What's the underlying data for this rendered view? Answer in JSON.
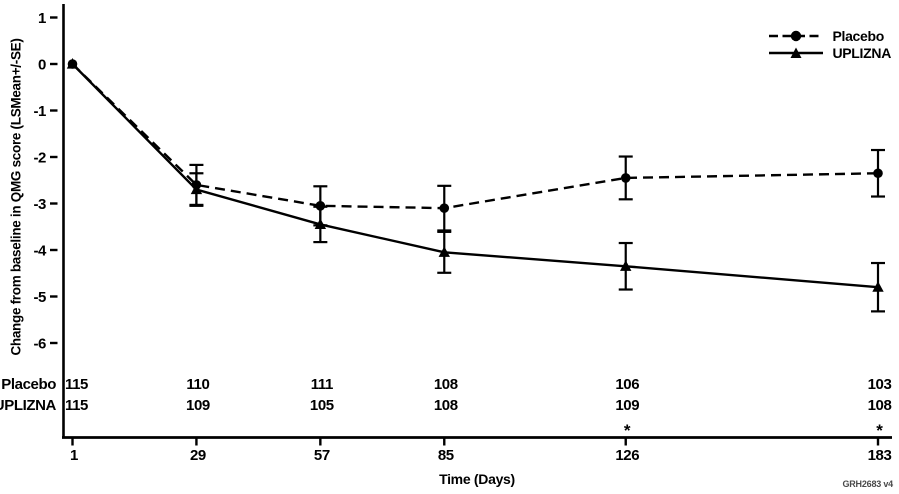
{
  "chart_data": {
    "type": "line",
    "title": "",
    "x_axis_title": "Time (Days)",
    "y_axis_title": "Change from baseline in QMG score (LSMean+/-SE)",
    "days": [
      1,
      29,
      57,
      85,
      126,
      183
    ],
    "y_ticks": [
      1,
      0,
      -1,
      -2,
      -3,
      -4,
      -5,
      -6
    ],
    "xlim": [
      1,
      186
    ],
    "ylim": [
      -6.6,
      1.2
    ],
    "grid": false,
    "legend_position": "top-right",
    "series": [
      {
        "name": "Placebo",
        "marker": "circle",
        "line_style": "dashed",
        "values": [
          0,
          -2.6,
          -3.05,
          -3.1,
          -2.45,
          -2.35
        ],
        "se": [
          0,
          0.43,
          0.42,
          0.48,
          0.46,
          0.5
        ],
        "n_counts": [
          115,
          110,
          111,
          108,
          106,
          103
        ]
      },
      {
        "name": "UPLIZNA",
        "marker": "triangle",
        "line_style": "solid",
        "values": [
          0,
          -2.7,
          -3.45,
          -4.05,
          -4.35,
          -4.8
        ],
        "se": [
          0,
          0.35,
          0.38,
          0.44,
          0.5,
          0.52
        ],
        "n_counts": [
          115,
          109,
          105,
          108,
          109,
          108
        ]
      }
    ],
    "significance": {
      "days": [
        126,
        183
      ],
      "marker": "*"
    }
  },
  "footer": {
    "figure_code": "GRH2683 v4"
  },
  "colors": {
    "foreground": "#000000",
    "background": "#ffffff"
  }
}
